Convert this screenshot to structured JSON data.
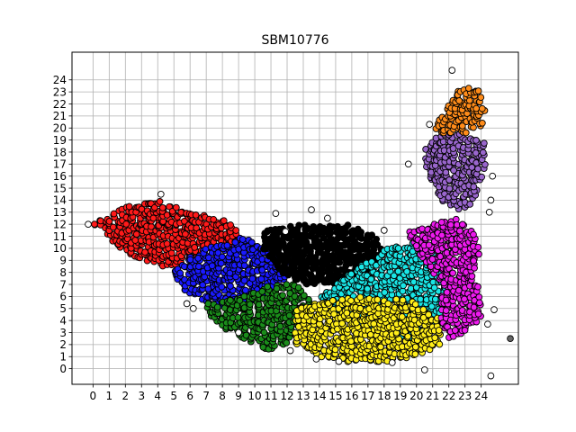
{
  "chart_data": {
    "type": "scatter",
    "title": "SBM10776",
    "xlabel": "",
    "ylabel": "",
    "xlim": [
      -1.3,
      26.3
    ],
    "ylim": [
      -1.3,
      26.3
    ],
    "xticks": [
      0,
      1,
      2,
      3,
      4,
      5,
      6,
      7,
      8,
      9,
      10,
      11,
      12,
      13,
      14,
      15,
      16,
      17,
      18,
      19,
      20,
      21,
      22,
      23,
      24
    ],
    "yticks": [
      0,
      1,
      2,
      3,
      4,
      5,
      6,
      7,
      8,
      9,
      10,
      11,
      12,
      13,
      14,
      15,
      16,
      17,
      18,
      19,
      20,
      21,
      22,
      23,
      24
    ],
    "grid": true,
    "legend": "none",
    "marker_edge": "#000000",
    "series": [
      {
        "color": "#ff1a1a",
        "region": [
          [
            0,
            12
          ],
          [
            2,
            13.5
          ],
          [
            4,
            14
          ],
          [
            6,
            13
          ],
          [
            8,
            12.5
          ],
          [
            9,
            11.5
          ],
          [
            9,
            10.5
          ],
          [
            7,
            9.5
          ],
          [
            5,
            8.5
          ],
          [
            4,
            8.5
          ],
          [
            2,
            9.5
          ],
          [
            0.5,
            11.5
          ]
        ]
      },
      {
        "color": "#1a1aff",
        "region": [
          [
            5.5,
            9
          ],
          [
            7,
            10
          ],
          [
            9,
            11
          ],
          [
            11,
            10
          ],
          [
            12,
            9
          ],
          [
            12,
            7
          ],
          [
            11,
            6
          ],
          [
            9,
            5
          ],
          [
            7,
            5.5
          ],
          [
            5.5,
            6.5
          ],
          [
            5,
            8
          ]
        ]
      },
      {
        "color": "#1a8c1a",
        "region": [
          [
            7,
            5.5
          ],
          [
            9,
            6
          ],
          [
            11,
            7
          ],
          [
            12.5,
            7
          ],
          [
            13.5,
            6
          ],
          [
            13,
            4
          ],
          [
            12,
            2
          ],
          [
            11,
            1.5
          ],
          [
            9,
            2.5
          ],
          [
            8,
            3.5
          ],
          [
            7,
            4.5
          ]
        ]
      },
      {
        "color": "#000000",
        "region": [
          [
            10.5,
            11.5
          ],
          [
            12,
            12
          ],
          [
            14,
            12
          ],
          [
            16,
            12
          ],
          [
            17.5,
            11
          ],
          [
            18,
            9.5
          ],
          [
            17,
            8
          ],
          [
            15,
            7
          ],
          [
            13,
            7
          ],
          [
            11.5,
            8
          ],
          [
            10.5,
            10
          ]
        ]
      },
      {
        "color": "#1ae6e6",
        "region": [
          [
            14,
            6
          ],
          [
            16,
            8
          ],
          [
            18,
            10
          ],
          [
            20,
            10.5
          ],
          [
            21.5,
            9
          ],
          [
            22,
            6.5
          ],
          [
            21.5,
            4
          ],
          [
            20,
            2
          ],
          [
            18,
            3
          ],
          [
            16,
            4
          ],
          [
            14.5,
            5
          ]
        ]
      },
      {
        "color": "#ffee1a",
        "region": [
          [
            12.5,
            5
          ],
          [
            14,
            5.5
          ],
          [
            16,
            6
          ],
          [
            18,
            6
          ],
          [
            20,
            5.5
          ],
          [
            21.5,
            4
          ],
          [
            21.5,
            2
          ],
          [
            20,
            1
          ],
          [
            18,
            0.5
          ],
          [
            16,
            0.5
          ],
          [
            14,
            1
          ],
          [
            12.5,
            2
          ],
          [
            12.5,
            3.5
          ]
        ]
      },
      {
        "color": "#ee1aee",
        "region": [
          [
            19.5,
            11.5
          ],
          [
            21,
            12
          ],
          [
            22.5,
            12.5
          ],
          [
            23.5,
            11.5
          ],
          [
            24,
            10
          ],
          [
            23.5,
            8
          ],
          [
            24,
            6
          ],
          [
            24,
            4
          ],
          [
            23,
            3
          ],
          [
            22,
            2.5
          ],
          [
            21.5,
            4
          ],
          [
            21.5,
            7
          ],
          [
            20.5,
            9
          ],
          [
            19.5,
            10.5
          ]
        ]
      },
      {
        "color": "#9966cc",
        "region": [
          [
            20.5,
            18.5
          ],
          [
            21.5,
            19.5
          ],
          [
            23,
            19.5
          ],
          [
            24.2,
            19
          ],
          [
            24.3,
            17
          ],
          [
            23.8,
            15
          ],
          [
            23.5,
            13.5
          ],
          [
            22.5,
            13
          ],
          [
            21.5,
            14
          ],
          [
            21,
            15.5
          ],
          [
            20.5,
            17
          ]
        ]
      },
      {
        "color": "#ff8c1a",
        "region": [
          [
            21,
            19.5
          ],
          [
            21.5,
            21
          ],
          [
            22,
            22.5
          ],
          [
            23,
            23.5
          ],
          [
            24,
            23
          ],
          [
            24.3,
            21.5
          ],
          [
            24,
            20
          ],
          [
            23,
            19.5
          ]
        ]
      }
    ],
    "outliers": [
      [
        -0.3,
        12
      ],
      [
        4.2,
        14.5
      ],
      [
        11.3,
        12.9
      ],
      [
        13.5,
        13.2
      ],
      [
        14.5,
        12.5
      ],
      [
        18,
        11.5
      ],
      [
        20.8,
        20.3
      ],
      [
        22.2,
        24.8
      ],
      [
        19.5,
        17
      ],
      [
        24.7,
        16
      ],
      [
        24.6,
        14
      ],
      [
        24.5,
        13
      ],
      [
        24.8,
        4.9
      ],
      [
        24.4,
        3.7
      ],
      [
        24.6,
        -0.6
      ],
      [
        20.5,
        -0.1
      ],
      [
        6.2,
        5
      ],
      [
        5.8,
        5.4
      ],
      [
        13.8,
        0.8
      ],
      [
        15.2,
        0.6
      ],
      [
        18.5,
        0.5
      ],
      [
        9,
        3
      ],
      [
        12.2,
        1.5
      ],
      [
        11.9,
        11.4
      ],
      [
        25.8,
        2.5
      ]
    ]
  }
}
